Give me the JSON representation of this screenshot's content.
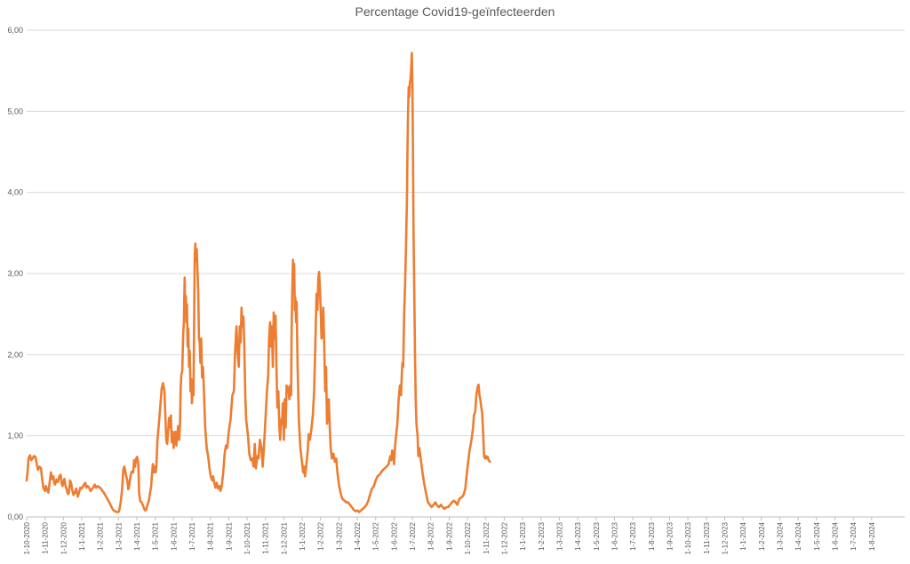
{
  "chart_data": {
    "type": "line",
    "title": "Percentage Covid19-geïnfecteerden",
    "xlabel": "",
    "ylabel": "",
    "ylim": [
      0,
      6
    ],
    "y_tick_labels": [
      "0,00",
      "1,00",
      "2,00",
      "3,00",
      "4,00",
      "5,00",
      "6,00"
    ],
    "grid": "horizontal",
    "legend": "none",
    "series_color": "#ed7d31",
    "categories": [
      "1-10-2020",
      "1-11-2020",
      "1-12-2020",
      "1-1-2021",
      "1-2-2021",
      "1-3-2021",
      "1-4-2021",
      "1-5-2021",
      "1-6-2021",
      "1-7-2021",
      "1-8-2021",
      "1-9-2021",
      "1-10-2021",
      "1-11-2021",
      "1-12-2021",
      "1-1-2022",
      "1-2-2022",
      "1-3-2022",
      "1-4-2022",
      "1-5-2022",
      "1-6-2022",
      "1-7-2022",
      "1-8-2022",
      "1-9-2022",
      "1-10-2022",
      "1-11-2022",
      "1-12-2022",
      "1-1-2023",
      "1-2-2023",
      "1-3-2023",
      "1-4-2023",
      "1-5-2023",
      "1-6-2023",
      "1-7-2023",
      "1-8-2023",
      "1-9-2023",
      "1-10-2023",
      "1-11-2023",
      "1-12-2023",
      "1-1-2024",
      "1-2-2024",
      "1-3-2024",
      "1-4-2024",
      "1-5-2024",
      "1-6-2024",
      "1-7-2024",
      "1-8-2024"
    ],
    "points": [
      [
        0,
        0.45
      ],
      [
        0.05,
        0.55
      ],
      [
        0.1,
        0.72
      ],
      [
        0.18,
        0.76
      ],
      [
        0.25,
        0.7
      ],
      [
        0.32,
        0.72
      ],
      [
        0.4,
        0.75
      ],
      [
        0.48,
        0.74
      ],
      [
        0.55,
        0.65
      ],
      [
        0.62,
        0.58
      ],
      [
        0.7,
        0.62
      ],
      [
        0.78,
        0.6
      ],
      [
        0.85,
        0.45
      ],
      [
        0.92,
        0.35
      ],
      [
        1.0,
        0.32
      ],
      [
        1.05,
        0.38
      ],
      [
        1.12,
        0.33
      ],
      [
        1.18,
        0.3
      ],
      [
        1.25,
        0.42
      ],
      [
        1.32,
        0.55
      ],
      [
        1.38,
        0.47
      ],
      [
        1.45,
        0.5
      ],
      [
        1.5,
        0.42
      ],
      [
        1.55,
        0.4
      ],
      [
        1.62,
        0.46
      ],
      [
        1.7,
        0.43
      ],
      [
        1.78,
        0.5
      ],
      [
        1.85,
        0.52
      ],
      [
        1.9,
        0.42
      ],
      [
        1.95,
        0.38
      ],
      [
        2.0,
        0.42
      ],
      [
        2.05,
        0.47
      ],
      [
        2.12,
        0.38
      ],
      [
        2.2,
        0.32
      ],
      [
        2.25,
        0.28
      ],
      [
        2.3,
        0.3
      ],
      [
        2.36,
        0.45
      ],
      [
        2.42,
        0.42
      ],
      [
        2.48,
        0.33
      ],
      [
        2.55,
        0.27
      ],
      [
        2.62,
        0.3
      ],
      [
        2.7,
        0.35
      ],
      [
        2.78,
        0.25
      ],
      [
        2.85,
        0.3
      ],
      [
        2.92,
        0.36
      ],
      [
        3.0,
        0.35
      ],
      [
        3.05,
        0.37
      ],
      [
        3.12,
        0.4
      ],
      [
        3.2,
        0.42
      ],
      [
        3.25,
        0.36
      ],
      [
        3.32,
        0.38
      ],
      [
        3.4,
        0.36
      ],
      [
        3.48,
        0.32
      ],
      [
        3.55,
        0.34
      ],
      [
        3.62,
        0.36
      ],
      [
        3.7,
        0.4
      ],
      [
        3.78,
        0.36
      ],
      [
        3.85,
        0.38
      ],
      [
        3.92,
        0.37
      ],
      [
        4.0,
        0.36
      ],
      [
        4.1,
        0.33
      ],
      [
        4.2,
        0.3
      ],
      [
        4.3,
        0.26
      ],
      [
        4.4,
        0.22
      ],
      [
        4.5,
        0.18
      ],
      [
        4.6,
        0.13
      ],
      [
        4.7,
        0.09
      ],
      [
        4.8,
        0.07
      ],
      [
        4.9,
        0.06
      ],
      [
        5.0,
        0.06
      ],
      [
        5.05,
        0.09
      ],
      [
        5.12,
        0.18
      ],
      [
        5.2,
        0.35
      ],
      [
        5.26,
        0.58
      ],
      [
        5.32,
        0.62
      ],
      [
        5.4,
        0.52
      ],
      [
        5.48,
        0.45
      ],
      [
        5.53,
        0.34
      ],
      [
        5.58,
        0.38
      ],
      [
        5.65,
        0.5
      ],
      [
        5.72,
        0.56
      ],
      [
        5.8,
        0.55
      ],
      [
        5.85,
        0.7
      ],
      [
        5.9,
        0.62
      ],
      [
        5.96,
        0.72
      ],
      [
        6.02,
        0.74
      ],
      [
        6.08,
        0.65
      ],
      [
        6.12,
        0.3
      ],
      [
        6.18,
        0.2
      ],
      [
        6.25,
        0.18
      ],
      [
        6.32,
        0.15
      ],
      [
        6.4,
        0.1
      ],
      [
        6.45,
        0.08
      ],
      [
        6.5,
        0.09
      ],
      [
        6.58,
        0.15
      ],
      [
        6.65,
        0.2
      ],
      [
        6.72,
        0.3
      ],
      [
        6.78,
        0.38
      ],
      [
        6.82,
        0.52
      ],
      [
        6.87,
        0.65
      ],
      [
        6.92,
        0.55
      ],
      [
        6.97,
        0.62
      ],
      [
        7.02,
        0.55
      ],
      [
        7.06,
        0.62
      ],
      [
        7.12,
        0.95
      ],
      [
        7.2,
        1.15
      ],
      [
        7.28,
        1.38
      ],
      [
        7.35,
        1.58
      ],
      [
        7.42,
        1.65
      ],
      [
        7.5,
        1.55
      ],
      [
        7.55,
        1.25
      ],
      [
        7.6,
        0.95
      ],
      [
        7.65,
        0.9
      ],
      [
        7.7,
        1.05
      ],
      [
        7.75,
        1.22
      ],
      [
        7.8,
        1.1
      ],
      [
        7.85,
        1.25
      ],
      [
        7.9,
        0.92
      ],
      [
        7.95,
        1.05
      ],
      [
        8.0,
        0.85
      ],
      [
        8.05,
        1.0
      ],
      [
        8.1,
        1.05
      ],
      [
        8.15,
        0.88
      ],
      [
        8.2,
        1.02
      ],
      [
        8.25,
        1.12
      ],
      [
        8.3,
        0.95
      ],
      [
        8.35,
        1.15
      ],
      [
        8.38,
        1.55
      ],
      [
        8.42,
        1.75
      ],
      [
        8.47,
        1.8
      ],
      [
        8.52,
        2.25
      ],
      [
        8.56,
        2.4
      ],
      [
        8.6,
        2.95
      ],
      [
        8.63,
        2.55
      ],
      [
        8.67,
        2.72
      ],
      [
        8.7,
        2.4
      ],
      [
        8.73,
        2.62
      ],
      [
        8.76,
        2.1
      ],
      [
        8.8,
        2.32
      ],
      [
        8.84,
        1.85
      ],
      [
        8.88,
        2.05
      ],
      [
        8.92,
        1.55
      ],
      [
        8.96,
        1.7
      ],
      [
        9.0,
        1.4
      ],
      [
        9.04,
        1.62
      ],
      [
        9.08,
        1.5
      ],
      [
        9.12,
        2.45
      ],
      [
        9.15,
        3.2
      ],
      [
        9.18,
        3.37
      ],
      [
        9.22,
        3.15
      ],
      [
        9.26,
        3.3
      ],
      [
        9.3,
        3.05
      ],
      [
        9.34,
        2.75
      ],
      [
        9.38,
        2.2
      ],
      [
        9.42,
        2.15
      ],
      [
        9.46,
        1.9
      ],
      [
        9.5,
        2.2
      ],
      [
        9.55,
        1.72
      ],
      [
        9.6,
        1.85
      ],
      [
        9.65,
        1.55
      ],
      [
        9.72,
        1.1
      ],
      [
        9.8,
        0.85
      ],
      [
        9.88,
        0.75
      ],
      [
        9.95,
        0.6
      ],
      [
        10.02,
        0.5
      ],
      [
        10.1,
        0.45
      ],
      [
        10.15,
        0.5
      ],
      [
        10.22,
        0.42
      ],
      [
        10.28,
        0.36
      ],
      [
        10.35,
        0.42
      ],
      [
        10.42,
        0.35
      ],
      [
        10.5,
        0.38
      ],
      [
        10.55,
        0.32
      ],
      [
        10.62,
        0.38
      ],
      [
        10.7,
        0.55
      ],
      [
        10.78,
        0.78
      ],
      [
        10.85,
        0.88
      ],
      [
        10.92,
        0.85
      ],
      [
        11.0,
        1.05
      ],
      [
        11.1,
        1.2
      ],
      [
        11.2,
        1.5
      ],
      [
        11.28,
        1.55
      ],
      [
        11.35,
        2.05
      ],
      [
        11.42,
        2.35
      ],
      [
        11.48,
        2.05
      ],
      [
        11.55,
        1.85
      ],
      [
        11.6,
        2.35
      ],
      [
        11.65,
        2.15
      ],
      [
        11.7,
        2.58
      ],
      [
        11.75,
        2.35
      ],
      [
        11.8,
        2.47
      ],
      [
        11.85,
        2.12
      ],
      [
        11.9,
        1.5
      ],
      [
        11.95,
        1.2
      ],
      [
        12.05,
        1.0
      ],
      [
        12.12,
        0.78
      ],
      [
        12.2,
        0.7
      ],
      [
        12.28,
        0.72
      ],
      [
        12.35,
        0.62
      ],
      [
        12.42,
        0.9
      ],
      [
        12.48,
        0.6
      ],
      [
        12.55,
        0.75
      ],
      [
        12.62,
        0.72
      ],
      [
        12.7,
        0.95
      ],
      [
        12.78,
        0.85
      ],
      [
        12.85,
        0.62
      ],
      [
        12.92,
        0.88
      ],
      [
        13.0,
        1.2
      ],
      [
        13.08,
        1.55
      ],
      [
        13.15,
        1.75
      ],
      [
        13.2,
        2.2
      ],
      [
        13.25,
        2.4
      ],
      [
        13.3,
        2.1
      ],
      [
        13.35,
        2.35
      ],
      [
        13.4,
        1.85
      ],
      [
        13.45,
        2.52
      ],
      [
        13.5,
        2.2
      ],
      [
        13.55,
        2.48
      ],
      [
        13.6,
        1.85
      ],
      [
        13.65,
        1.35
      ],
      [
        13.7,
        1.55
      ],
      [
        13.75,
        1.15
      ],
      [
        13.8,
        0.95
      ],
      [
        13.85,
        1.2
      ],
      [
        13.9,
        1.15
      ],
      [
        13.95,
        1.4
      ],
      [
        14.0,
        0.95
      ],
      [
        14.05,
        1.45
      ],
      [
        14.1,
        1.1
      ],
      [
        14.15,
        1.62
      ],
      [
        14.2,
        1.55
      ],
      [
        14.25,
        1.6
      ],
      [
        14.3,
        1.45
      ],
      [
        14.35,
        1.62
      ],
      [
        14.4,
        1.5
      ],
      [
        14.42,
        2.25
      ],
      [
        14.46,
        2.8
      ],
      [
        14.5,
        3.17
      ],
      [
        14.53,
        2.9
      ],
      [
        14.56,
        3.12
      ],
      [
        14.6,
        2.55
      ],
      [
        14.63,
        2.7
      ],
      [
        14.67,
        2.4
      ],
      [
        14.7,
        2.65
      ],
      [
        14.75,
        1.85
      ],
      [
        14.82,
        1.2
      ],
      [
        14.9,
        0.85
      ],
      [
        14.98,
        0.7
      ],
      [
        15.05,
        0.55
      ],
      [
        15.1,
        0.62
      ],
      [
        15.15,
        0.5
      ],
      [
        15.22,
        0.62
      ],
      [
        15.3,
        0.82
      ],
      [
        15.35,
        1.02
      ],
      [
        15.42,
        0.95
      ],
      [
        15.5,
        1.08
      ],
      [
        15.58,
        1.25
      ],
      [
        15.65,
        1.55
      ],
      [
        15.72,
        2.15
      ],
      [
        15.78,
        2.75
      ],
      [
        15.83,
        2.55
      ],
      [
        15.88,
        2.95
      ],
      [
        15.92,
        3.02
      ],
      [
        15.96,
        2.85
      ],
      [
        16.0,
        2.6
      ],
      [
        16.05,
        2.2
      ],
      [
        16.1,
        2.35
      ],
      [
        16.15,
        2.58
      ],
      [
        16.2,
        2.1
      ],
      [
        16.25,
        1.55
      ],
      [
        16.3,
        1.85
      ],
      [
        16.35,
        1.15
      ],
      [
        16.4,
        1.35
      ],
      [
        16.45,
        1.45
      ],
      [
        16.5,
        1.1
      ],
      [
        16.55,
        0.85
      ],
      [
        16.62,
        0.72
      ],
      [
        16.7,
        0.78
      ],
      [
        16.78,
        0.68
      ],
      [
        16.85,
        0.72
      ],
      [
        16.92,
        0.55
      ],
      [
        17.0,
        0.4
      ],
      [
        17.1,
        0.28
      ],
      [
        17.2,
        0.22
      ],
      [
        17.3,
        0.2
      ],
      [
        17.4,
        0.18
      ],
      [
        17.5,
        0.18
      ],
      [
        17.6,
        0.15
      ],
      [
        17.7,
        0.12
      ],
      [
        17.8,
        0.09
      ],
      [
        17.9,
        0.07
      ],
      [
        18.0,
        0.08
      ],
      [
        18.1,
        0.06
      ],
      [
        18.2,
        0.08
      ],
      [
        18.3,
        0.1
      ],
      [
        18.4,
        0.12
      ],
      [
        18.5,
        0.15
      ],
      [
        18.6,
        0.2
      ],
      [
        18.7,
        0.28
      ],
      [
        18.8,
        0.35
      ],
      [
        18.9,
        0.38
      ],
      [
        19.0,
        0.45
      ],
      [
        19.1,
        0.5
      ],
      [
        19.2,
        0.52
      ],
      [
        19.3,
        0.55
      ],
      [
        19.4,
        0.58
      ],
      [
        19.5,
        0.6
      ],
      [
        19.6,
        0.62
      ],
      [
        19.7,
        0.65
      ],
      [
        19.8,
        0.75
      ],
      [
        19.85,
        0.7
      ],
      [
        19.9,
        0.82
      ],
      [
        19.95,
        0.78
      ],
      [
        20.0,
        0.65
      ],
      [
        20.05,
        0.85
      ],
      [
        20.1,
        0.98
      ],
      [
        20.18,
        1.15
      ],
      [
        20.25,
        1.45
      ],
      [
        20.32,
        1.62
      ],
      [
        20.38,
        1.5
      ],
      [
        20.42,
        1.75
      ],
      [
        20.46,
        1.9
      ],
      [
        20.5,
        1.85
      ],
      [
        20.55,
        2.5
      ],
      [
        20.6,
        2.85
      ],
      [
        20.65,
        3.3
      ],
      [
        20.7,
        3.9
      ],
      [
        20.73,
        4.5
      ],
      [
        20.76,
        4.95
      ],
      [
        20.8,
        5.3
      ],
      [
        20.83,
        5.18
      ],
      [
        20.86,
        5.35
      ],
      [
        20.9,
        5.4
      ],
      [
        20.94,
        5.55
      ],
      [
        20.97,
        5.72
      ],
      [
        21.0,
        5.3
      ],
      [
        21.03,
        4.5
      ],
      [
        21.06,
        3.55
      ],
      [
        21.1,
        2.85
      ],
      [
        21.14,
        2.0
      ],
      [
        21.18,
        1.45
      ],
      [
        21.22,
        1.15
      ],
      [
        21.28,
        1.0
      ],
      [
        21.32,
        0.75
      ],
      [
        21.38,
        0.85
      ],
      [
        21.45,
        0.72
      ],
      [
        21.55,
        0.55
      ],
      [
        21.65,
        0.4
      ],
      [
        21.75,
        0.28
      ],
      [
        21.85,
        0.18
      ],
      [
        21.95,
        0.15
      ],
      [
        22.05,
        0.12
      ],
      [
        22.15,
        0.15
      ],
      [
        22.25,
        0.18
      ],
      [
        22.35,
        0.14
      ],
      [
        22.45,
        0.12
      ],
      [
        22.55,
        0.15
      ],
      [
        22.65,
        0.12
      ],
      [
        22.75,
        0.1
      ],
      [
        22.85,
        0.12
      ],
      [
        22.95,
        0.12
      ],
      [
        23.05,
        0.15
      ],
      [
        23.15,
        0.18
      ],
      [
        23.25,
        0.2
      ],
      [
        23.35,
        0.18
      ],
      [
        23.45,
        0.15
      ],
      [
        23.55,
        0.22
      ],
      [
        23.65,
        0.24
      ],
      [
        23.72,
        0.25
      ],
      [
        23.8,
        0.28
      ],
      [
        23.88,
        0.35
      ],
      [
        23.95,
        0.5
      ],
      [
        24.02,
        0.65
      ],
      [
        24.1,
        0.8
      ],
      [
        24.18,
        0.9
      ],
      [
        24.25,
        1.0
      ],
      [
        24.3,
        1.1
      ],
      [
        24.35,
        1.25
      ],
      [
        24.42,
        1.3
      ],
      [
        24.48,
        1.5
      ],
      [
        24.55,
        1.6
      ],
      [
        24.6,
        1.63
      ],
      [
        24.65,
        1.5
      ],
      [
        24.7,
        1.45
      ],
      [
        24.75,
        1.35
      ],
      [
        24.8,
        1.28
      ],
      [
        24.85,
        1.05
      ],
      [
        24.9,
        0.75
      ],
      [
        24.95,
        0.72
      ],
      [
        25.0,
        0.75
      ],
      [
        25.05,
        0.72
      ],
      [
        25.1,
        0.74
      ],
      [
        25.15,
        0.7
      ],
      [
        25.22,
        0.68
      ]
    ]
  }
}
